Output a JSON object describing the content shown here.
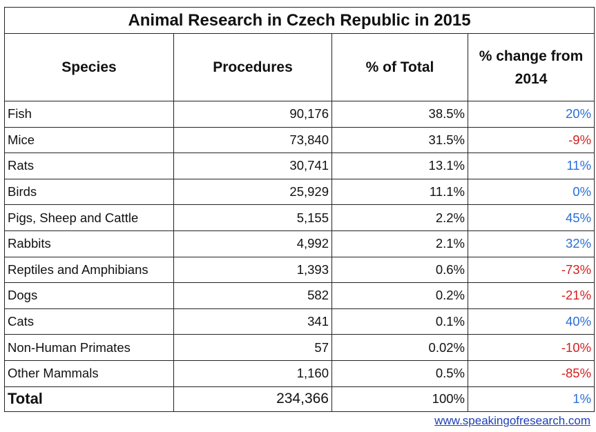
{
  "chart_data": {
    "type": "table",
    "title": "Animal Research in Czech Republic in 2015",
    "columns": [
      "Species",
      "Procedures",
      "% of Total",
      "% change from 2014"
    ],
    "rows": [
      {
        "species": "Fish",
        "procedures": "90,176",
        "pct_total": "38.5%",
        "change": "20%",
        "direction": "positive"
      },
      {
        "species": "Mice",
        "procedures": "73,840",
        "pct_total": "31.5%",
        "change": "-9%",
        "direction": "negative"
      },
      {
        "species": "Rats",
        "procedures": "30,741",
        "pct_total": "13.1%",
        "change": "11%",
        "direction": "positive"
      },
      {
        "species": "Birds",
        "procedures": "25,929",
        "pct_total": "11.1%",
        "change": "0%",
        "direction": "positive"
      },
      {
        "species": "Pigs, Sheep and Cattle",
        "procedures": "5,155",
        "pct_total": "2.2%",
        "change": "45%",
        "direction": "positive"
      },
      {
        "species": "Rabbits",
        "procedures": "4,992",
        "pct_total": "2.1%",
        "change": "32%",
        "direction": "positive"
      },
      {
        "species": "Reptiles and Amphibians",
        "procedures": "1,393",
        "pct_total": "0.6%",
        "change": "-73%",
        "direction": "negative"
      },
      {
        "species": "Dogs",
        "procedures": "582",
        "pct_total": "0.2%",
        "change": "-21%",
        "direction": "negative"
      },
      {
        "species": "Cats",
        "procedures": "341",
        "pct_total": "0.1%",
        "change": "40%",
        "direction": "positive"
      },
      {
        "species": "Non-Human Primates",
        "procedures": "57",
        "pct_total": "0.02%",
        "change": "-10%",
        "direction": "negative"
      },
      {
        "species": "Other Mammals",
        "procedures": "1,160",
        "pct_total": "0.5%",
        "change": "-85%",
        "direction": "negative"
      }
    ],
    "total": {
      "species": "Total",
      "procedures": "234,366",
      "pct_total": "100%",
      "change": "1%",
      "direction": "positive"
    },
    "colors": {
      "positive": "#2a6fd6",
      "negative": "#d42020"
    }
  },
  "footer": {
    "link": "www.speakingofresearch.com"
  }
}
